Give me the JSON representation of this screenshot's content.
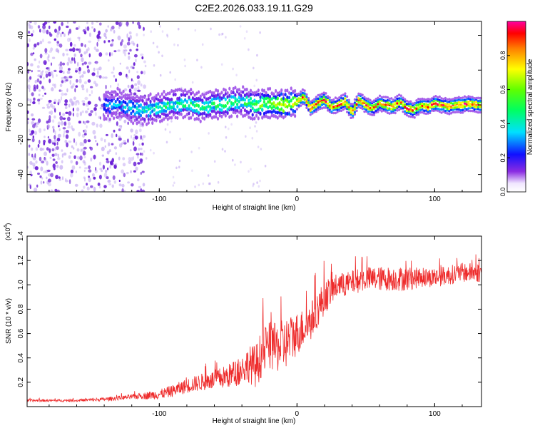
{
  "figure_title": "C2E2.2026.033.19.11.G29",
  "colors": {
    "snr_line": "#ee2b2b",
    "axis": "#000000",
    "spec_dot": "#6a1fd6",
    "spec_faint": "#b89af0"
  },
  "chart_data": [
    {
      "type": "heatmap",
      "title": "C2E2.2026.033.19.11.G29",
      "xlabel": "Height of straight line (km)",
      "ylabel": "Frequency (Hz)",
      "xlim": [
        -196,
        134
      ],
      "ylim": [
        -50,
        48
      ],
      "x_ticks": [
        -100,
        0,
        100
      ],
      "x_tick_labels": [
        "-100",
        "0",
        "100"
      ],
      "y_ticks": [
        -40,
        -20,
        0,
        20,
        40
      ],
      "y_tick_labels": [
        "-40",
        "-20",
        "0",
        "20",
        "40"
      ],
      "colorbar": {
        "label": "Normalized spectral amplitude",
        "range": [
          0,
          1
        ],
        "ticks": [
          0.0,
          0.2,
          0.4,
          0.6,
          0.8
        ],
        "tick_labels": [
          "0.0",
          "0.2",
          "0.4",
          "0.6",
          "0.8"
        ]
      },
      "ridge_trace": {
        "x": [
          -140,
          -130,
          -120,
          -110,
          -100,
          -90,
          -80,
          -70,
          -60,
          -50,
          -40,
          -30,
          -20,
          -10,
          0,
          5,
          10,
          15,
          20,
          25,
          30,
          35,
          40,
          45,
          50,
          55,
          60,
          65,
          70,
          75,
          80,
          85,
          90,
          95,
          100,
          105,
          110,
          115,
          120,
          125,
          130
        ],
        "frequency_hz": [
          -1,
          1,
          -2,
          -3,
          -1,
          0,
          1,
          -1,
          0,
          1,
          2,
          0,
          1,
          0,
          2,
          5,
          -2,
          1,
          3,
          -1,
          0,
          2,
          -4,
          3,
          0,
          -2,
          1,
          0,
          -1,
          2,
          -2,
          -3,
          0,
          -1,
          1,
          0,
          -1,
          0,
          0,
          1,
          0
        ],
        "peak_amplitude": [
          0.3,
          0.35,
          0.4,
          0.45,
          0.5,
          0.5,
          0.5,
          0.55,
          0.5,
          0.55,
          0.5,
          0.6,
          0.7,
          0.8,
          0.85,
          0.9,
          0.95,
          0.95,
          0.95,
          0.95,
          0.95,
          0.9,
          0.9,
          0.95,
          0.95,
          0.9,
          0.9,
          0.95,
          0.9,
          0.9,
          0.95,
          0.9,
          0.9,
          0.95,
          0.95,
          0.95,
          0.95,
          0.95,
          0.95,
          0.95,
          0.95
        ]
      }
    },
    {
      "type": "line",
      "xlabel": "Height of straight line (km)",
      "ylabel": "SNR (10 * v/v)",
      "y_multiplier_label": "(x10",
      "y_multiplier_exponent": "4",
      "y_multiplier_close": ")",
      "xlim": [
        -196,
        134
      ],
      "ylim": [
        0,
        1.4
      ],
      "x_ticks": [
        -100,
        0,
        100
      ],
      "x_tick_labels": [
        "-100",
        "0",
        "100"
      ],
      "y_ticks": [
        0.2,
        0.4,
        0.6,
        0.8,
        1.0,
        1.2,
        1.4
      ],
      "y_tick_labels": [
        "0.2",
        "0.4",
        "0.6",
        "0.8",
        "1.0",
        "1.2",
        "1.4"
      ],
      "series": [
        {
          "name": "SNR",
          "x": [
            -196,
            -180,
            -160,
            -140,
            -120,
            -100,
            -90,
            -80,
            -70,
            -60,
            -50,
            -40,
            -35,
            -30,
            -25,
            -20,
            -15,
            -10,
            -5,
            0,
            5,
            10,
            15,
            20,
            25,
            30,
            35,
            40,
            50,
            60,
            70,
            80,
            90,
            100,
            110,
            120,
            134
          ],
          "values": [
            0.05,
            0.05,
            0.05,
            0.06,
            0.08,
            0.1,
            0.13,
            0.17,
            0.2,
            0.22,
            0.25,
            0.3,
            0.35,
            0.33,
            0.45,
            0.5,
            0.48,
            0.5,
            0.55,
            0.6,
            0.65,
            0.7,
            0.8,
            0.9,
            0.95,
            1.0,
            1.0,
            1.02,
            1.05,
            1.05,
            1.05,
            1.05,
            1.06,
            1.06,
            1.08,
            1.1,
            1.1
          ],
          "noise_amplitude": [
            0.01,
            0.01,
            0.01,
            0.015,
            0.02,
            0.04,
            0.05,
            0.06,
            0.07,
            0.08,
            0.1,
            0.12,
            0.15,
            0.18,
            0.2,
            0.2,
            0.2,
            0.22,
            0.2,
            0.18,
            0.16,
            0.16,
            0.15,
            0.14,
            0.12,
            0.1,
            0.1,
            0.1,
            0.1,
            0.1,
            0.1,
            0.1,
            0.08,
            0.08,
            0.08,
            0.08,
            0.08
          ]
        }
      ]
    }
  ]
}
